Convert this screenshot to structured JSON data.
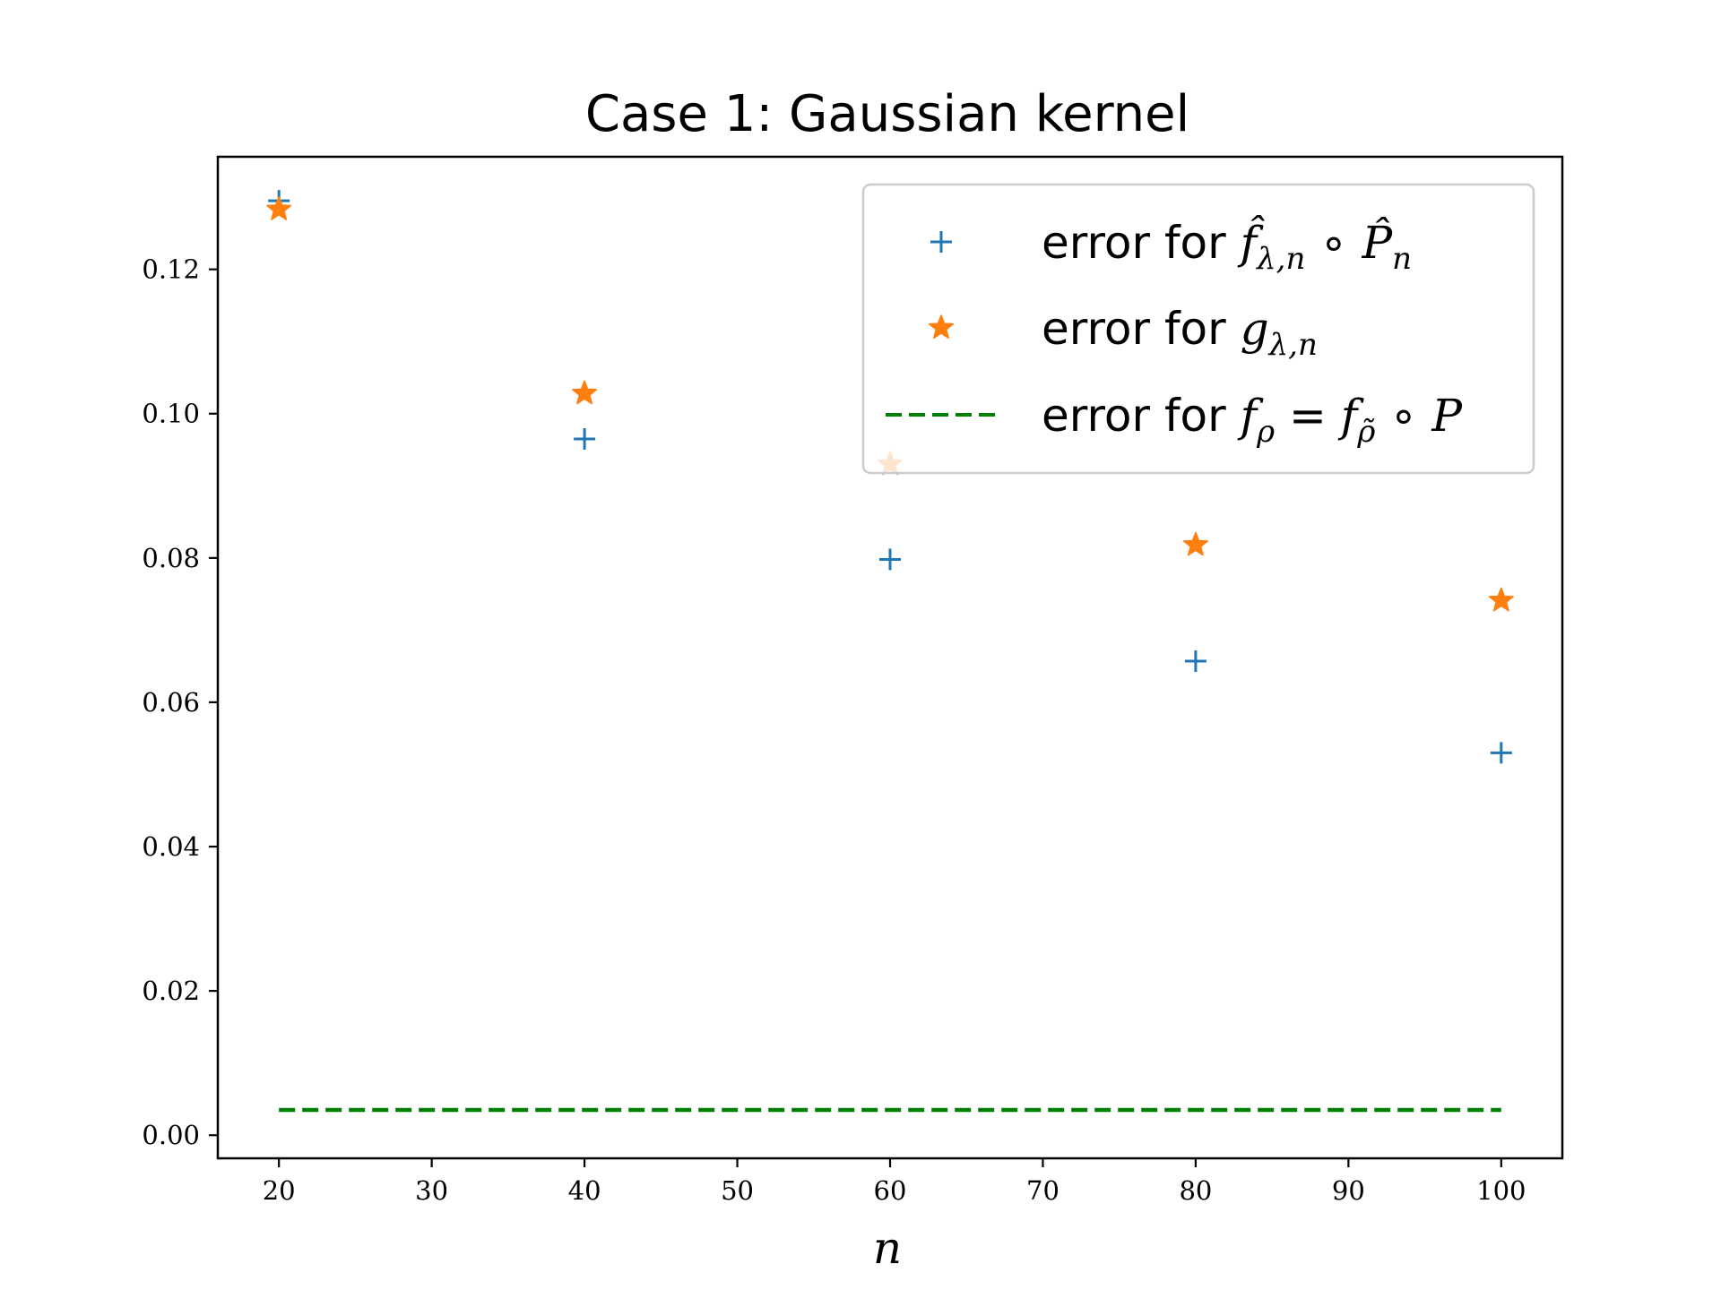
{
  "chart_data": {
    "type": "scatter",
    "title": "Case 1: Gaussian kernel",
    "xlabel": "n",
    "ylabel": "",
    "xlim": [
      16,
      104
    ],
    "ylim": [
      -0.0032,
      0.1356
    ],
    "xticks": [
      20,
      30,
      40,
      50,
      60,
      70,
      80,
      90,
      100
    ],
    "yticks": [
      0.0,
      0.02,
      0.04,
      0.06,
      0.08,
      0.1,
      0.12
    ],
    "ytick_labels": [
      "0.00",
      "0.02",
      "0.04",
      "0.06",
      "0.08",
      "0.10",
      "0.12"
    ],
    "grid": false,
    "legend_position": "top-right",
    "series": [
      {
        "name": "error for f̂λ,n ∘ P̂n",
        "marker": "plus",
        "color": "#1f77b4",
        "x": [
          20,
          40,
          60,
          80,
          100
        ],
        "y": [
          0.1295,
          0.0965,
          0.0798,
          0.0657,
          0.053
        ]
      },
      {
        "name": "error for gλ,n",
        "marker": "star",
        "color": "#ff7f0e",
        "x": [
          20,
          40,
          60,
          80,
          100
        ],
        "y": [
          0.1283,
          0.1028,
          0.093,
          0.0818,
          0.0741
        ]
      },
      {
        "name": "error for fρ = fρ̃ ∘ P",
        "marker": "dashed-line",
        "color": "#008000",
        "x": [
          20,
          100
        ],
        "y": [
          0.0035,
          0.0035
        ]
      }
    ]
  }
}
